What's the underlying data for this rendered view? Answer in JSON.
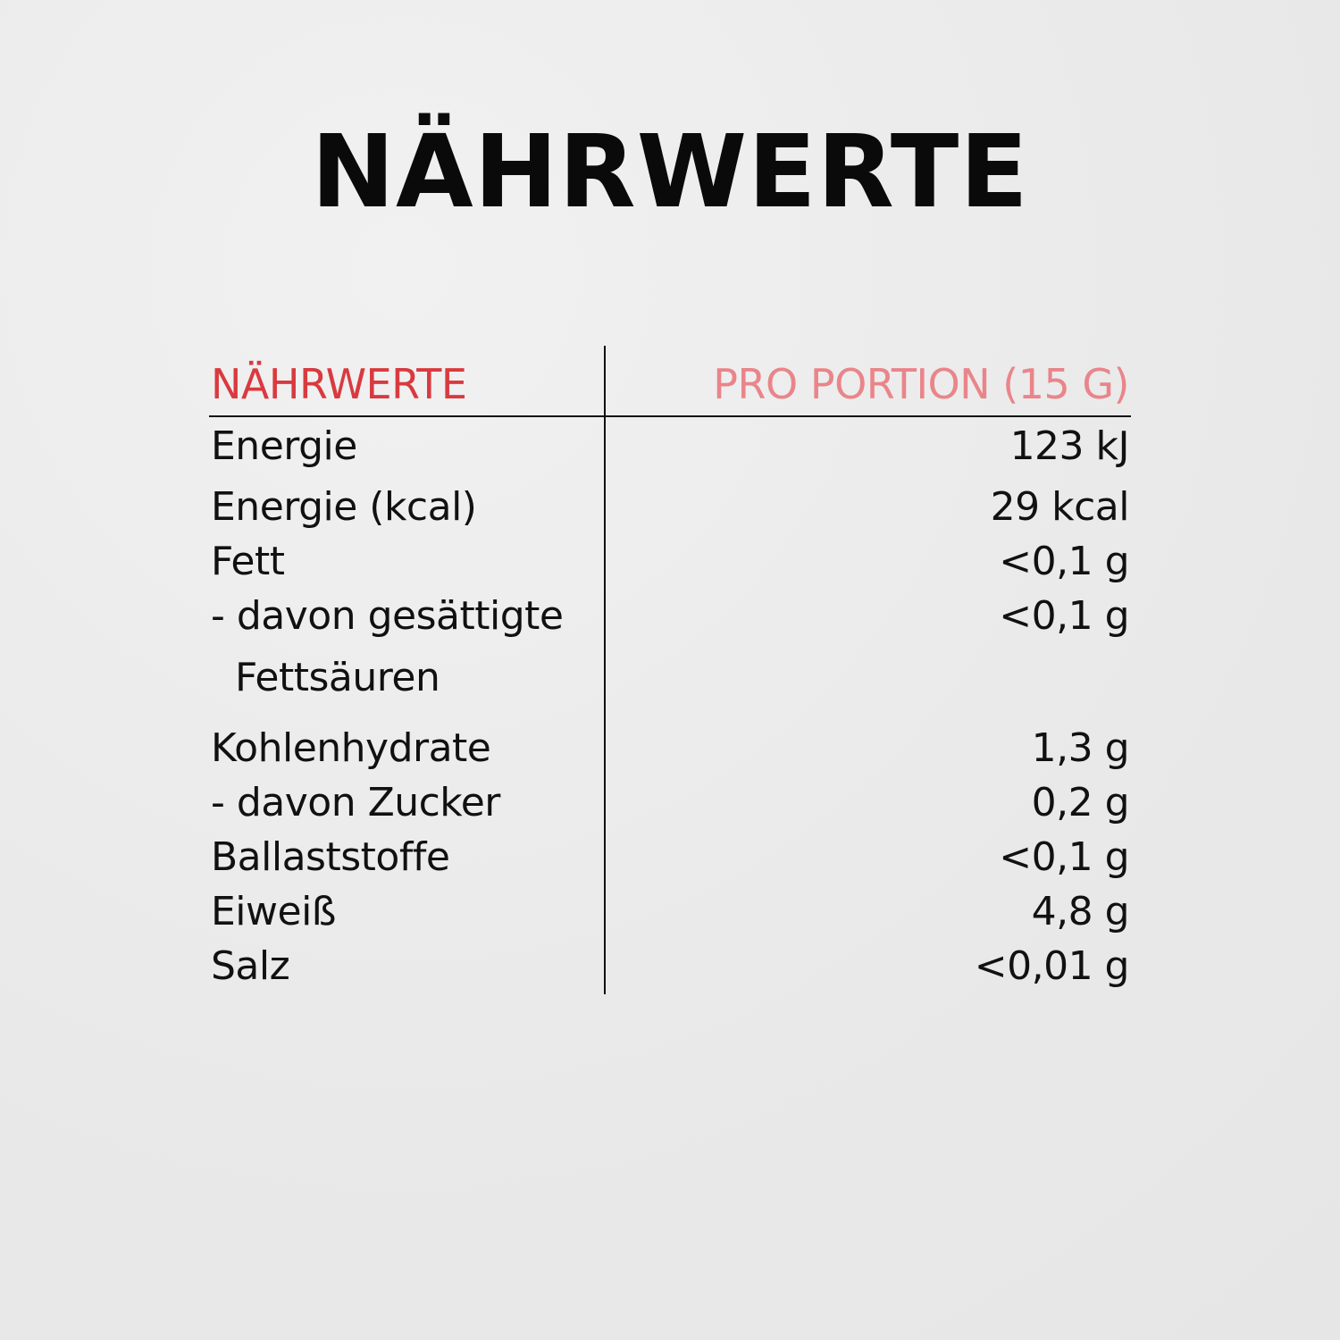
{
  "title": "NÄHRWERTE",
  "table": {
    "header": {
      "label": "NÄHRWERTE",
      "value": "PRO PORTION (15 G)"
    },
    "colors": {
      "label_header": "#d93a3f",
      "value_header": "#e9858a"
    },
    "rows": [
      {
        "label": "Energie",
        "value": "123 kJ"
      },
      {
        "label": "Energie (kcal)",
        "value": "29 kcal"
      },
      {
        "label": "Fett",
        "value": "<0,1 g"
      },
      {
        "label": "- davon gesättigte",
        "value": "<0,1 g"
      },
      {
        "label": "Fettsäuren",
        "value": ""
      },
      {
        "label": "Kohlenhydrate",
        "value": "1,3 g"
      },
      {
        "label": "- davon Zucker",
        "value": "0,2 g"
      },
      {
        "label": "Ballaststoffe",
        "value": "<0,1 g"
      },
      {
        "label": "Eiweiß",
        "value": "4,8 g"
      },
      {
        "label": "Salz",
        "value": "<0,01 g"
      }
    ]
  }
}
